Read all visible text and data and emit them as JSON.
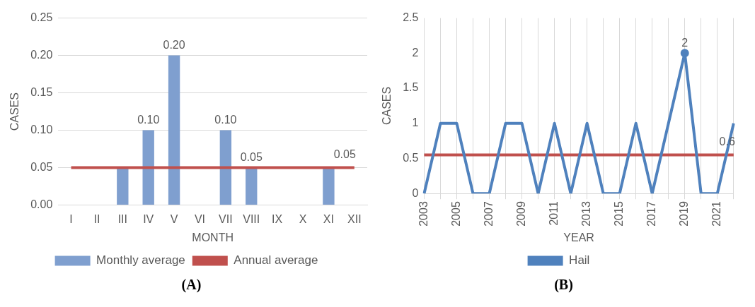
{
  "chart_data": [
    {
      "type": "bar",
      "title": "(A)",
      "xlabel": "MONTH",
      "ylabel": "CASES",
      "categories": [
        "I",
        "II",
        "III",
        "IV",
        "V",
        "VI",
        "VII",
        "VIII",
        "IX",
        "X",
        "XI",
        "XII"
      ],
      "series": [
        {
          "name": "Monthly average",
          "type": "bar",
          "color": "#7f9fcf",
          "values": [
            0,
            0,
            0.05,
            0.1,
            0.2,
            0,
            0.1,
            0.05,
            0,
            0,
            0.05,
            0
          ],
          "value_labels": [
            null,
            null,
            null,
            "0.10",
            "0.20",
            null,
            "0.10",
            "0.05",
            null,
            null,
            null,
            null
          ]
        },
        {
          "name": "Annual average",
          "type": "line",
          "color": "#c0504d",
          "values": [
            0.05,
            0.05,
            0.05,
            0.05,
            0.05,
            0.05,
            0.05,
            0.05,
            0.05,
            0.05,
            0.05,
            0.05
          ],
          "value_labels": [
            null,
            null,
            null,
            null,
            null,
            null,
            null,
            null,
            null,
            null,
            null,
            "0.05"
          ]
        }
      ],
      "ylim": [
        0,
        0.25
      ],
      "yticks": [
        {
          "value": 0,
          "label": "0.00"
        },
        {
          "value": 0.05,
          "label": "0.05"
        },
        {
          "value": 0.1,
          "label": "0.10"
        },
        {
          "value": 0.15,
          "label": "0.15"
        },
        {
          "value": 0.2,
          "label": "0.20"
        },
        {
          "value": 0.25,
          "label": "0.25"
        }
      ],
      "grid": "y",
      "legend": "bottom"
    },
    {
      "type": "line",
      "title": "(B)",
      "xlabel": "YEAR",
      "ylabel": "CASES",
      "categories": [
        "2003",
        null,
        "2005",
        null,
        "2007",
        null,
        "2009",
        null,
        "2011",
        null,
        "2013",
        null,
        "2015",
        null,
        "2017",
        null,
        "2019",
        null,
        "2021",
        null
      ],
      "series": [
        {
          "name": "Hail",
          "color": "#4f81bd",
          "values": [
            0,
            1,
            1,
            0,
            0,
            1,
            1,
            0,
            1,
            0,
            1,
            0,
            0,
            1,
            0,
            1,
            2,
            0,
            0,
            1
          ],
          "value_labels": [
            null,
            null,
            null,
            null,
            null,
            null,
            null,
            null,
            null,
            null,
            null,
            null,
            null,
            null,
            null,
            null,
            "2",
            null,
            null,
            null
          ]
        },
        {
          "color": "#c0504d",
          "values": [
            0.55,
            0.55,
            0.55,
            0.55,
            0.55,
            0.55,
            0.55,
            0.55,
            0.55,
            0.55,
            0.55,
            0.55,
            0.55,
            0.55,
            0.55,
            0.55,
            0.55,
            0.55,
            0.55,
            0.55
          ],
          "value_labels": [
            null,
            null,
            null,
            null,
            null,
            null,
            null,
            null,
            null,
            null,
            null,
            null,
            null,
            null,
            null,
            null,
            null,
            null,
            null,
            "0.6"
          ]
        }
      ],
      "ylim": [
        0,
        2.5
      ],
      "yticks": [
        0,
        0.5,
        1,
        1.5,
        2,
        2.5
      ],
      "grid": "x",
      "legend": "bottom"
    }
  ]
}
